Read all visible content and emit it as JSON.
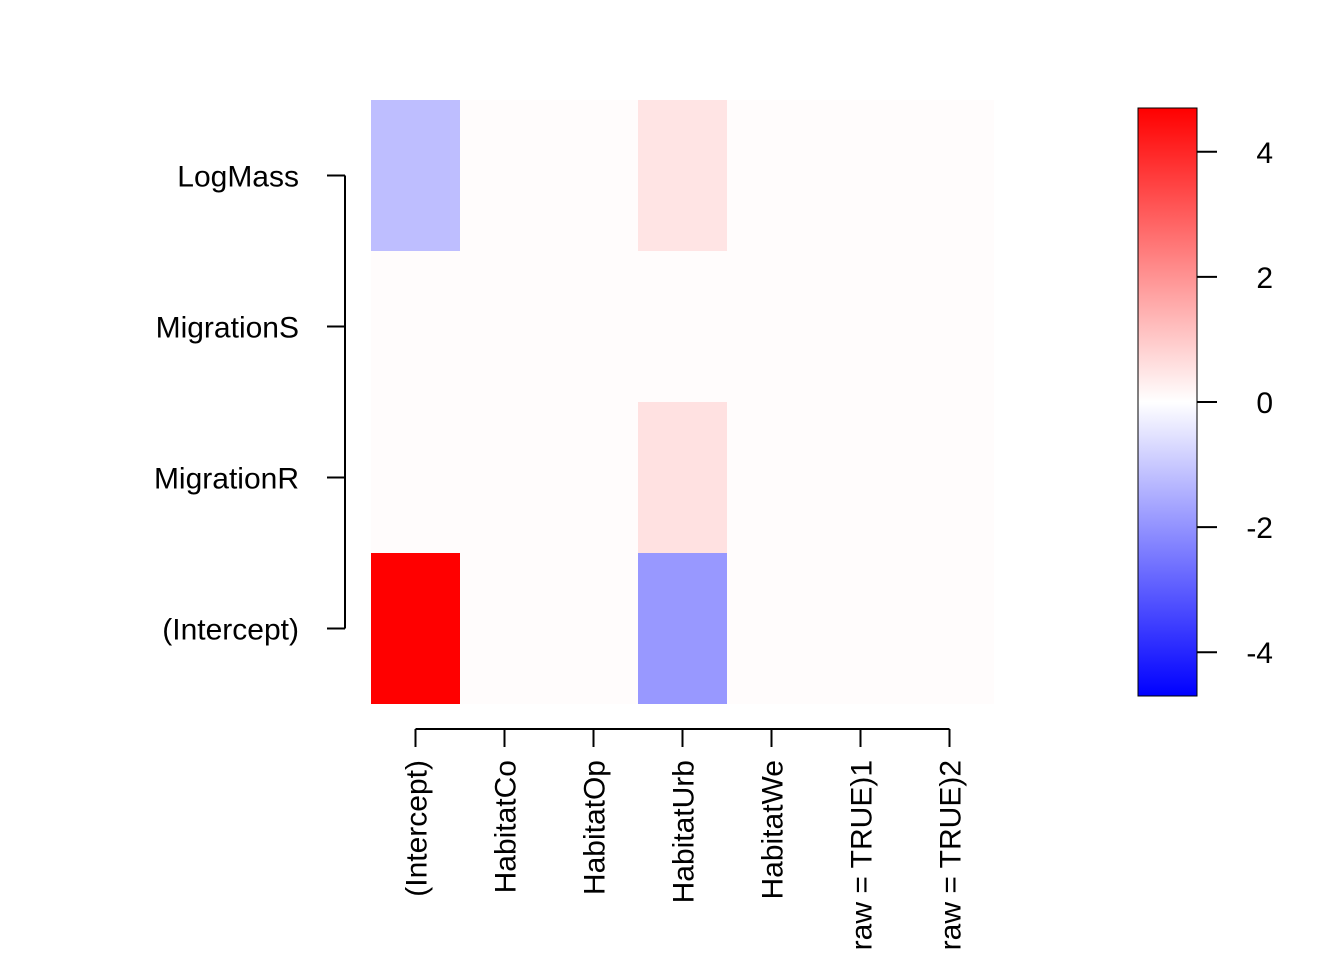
{
  "chart_data": {
    "type": "heatmap",
    "title": "",
    "xlabel": "",
    "ylabel": "",
    "x_categories": [
      "(Intercept)",
      "HabitatCo",
      "HabitatOp",
      "HabitatUrb",
      "HabitatWe",
      "raw = TRUE)1",
      "raw = TRUE)2"
    ],
    "y_categories": [
      "(Intercept)",
      "MigrationR",
      "MigrationS",
      "LogMass"
    ],
    "values": [
      [
        4.7,
        0,
        0,
        -1.9,
        0,
        0,
        0
      ],
      [
        0,
        0,
        0,
        0.55,
        0,
        0,
        0
      ],
      [
        0,
        0,
        0,
        0,
        0,
        0,
        0
      ],
      [
        -1.2,
        0,
        0,
        0.5,
        0,
        0,
        0
      ]
    ],
    "colorbar": {
      "range": [
        -4.7,
        4.7
      ],
      "ticks": [
        -4,
        -2,
        0,
        2,
        4
      ],
      "tick_labels": [
        "-4",
        "-2",
        "0",
        "2",
        "4"
      ],
      "low_color": "#0000ff",
      "mid_color": "#ffffff",
      "high_color": "#ff0000",
      "background_color": "#fffcfc"
    }
  }
}
